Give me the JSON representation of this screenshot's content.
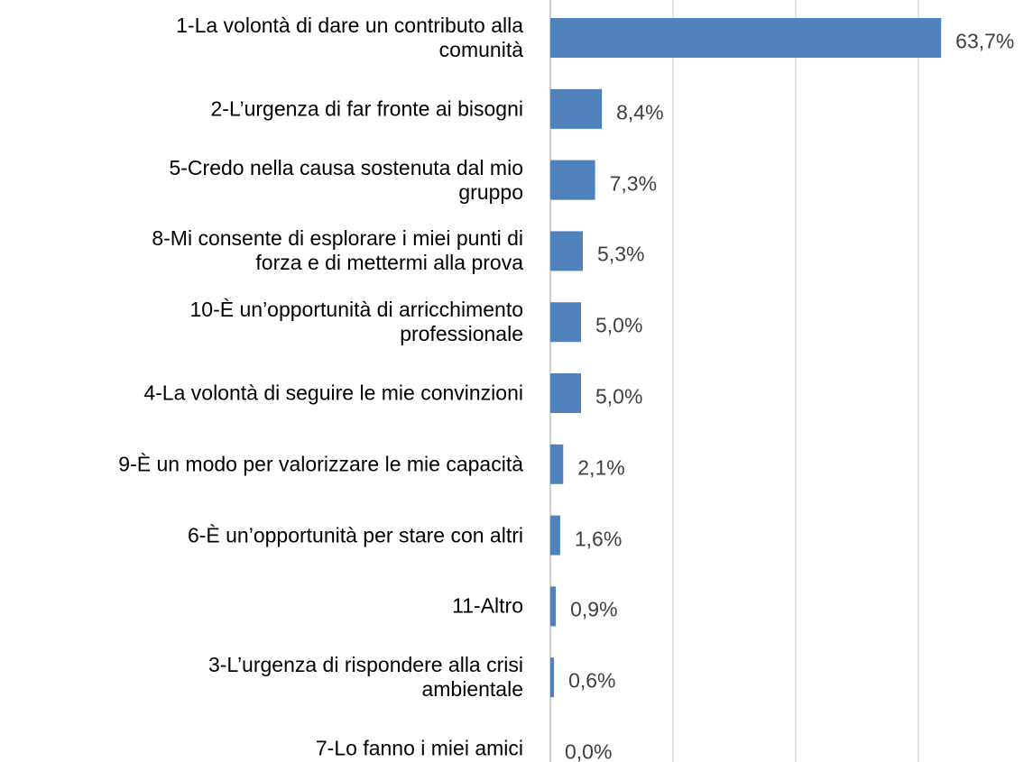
{
  "chart_data": {
    "type": "bar",
    "orientation": "horizontal",
    "categories": [
      "1-La volontà di dare un contributo alla\ncomunità",
      "2-L’urgenza di far fronte ai bisogni",
      "5-Credo nella causa sostenuta dal mio\ngruppo",
      "8-Mi consente di esplorare i miei punti di\nforza e di mettermi alla prova",
      "10-È un’opportunità di arricchimento\nprofessionale",
      "4-La volontà di seguire le mie convinzioni",
      "9-È un modo per valorizzare le mie capacità",
      "6-È un’opportunità per stare con altri",
      "11-Altro",
      "3-L’urgenza di rispondere alla crisi\nambientale",
      "7-Lo fanno i miei amici"
    ],
    "values": [
      63.7,
      8.4,
      7.3,
      5.3,
      5.0,
      5.0,
      2.1,
      1.6,
      0.9,
      0.6,
      0.0
    ],
    "value_labels": [
      "63,7%",
      "8,4%",
      "7,3%",
      "5,3%",
      "5,0%",
      "5,0%",
      "2,1%",
      "1,6%",
      "0,9%",
      "0,6%",
      "0,0%"
    ],
    "color": "#4f81bd",
    "xlim": [
      0,
      70
    ],
    "xticks": [
      0,
      20,
      40,
      60
    ],
    "grid": true
  }
}
